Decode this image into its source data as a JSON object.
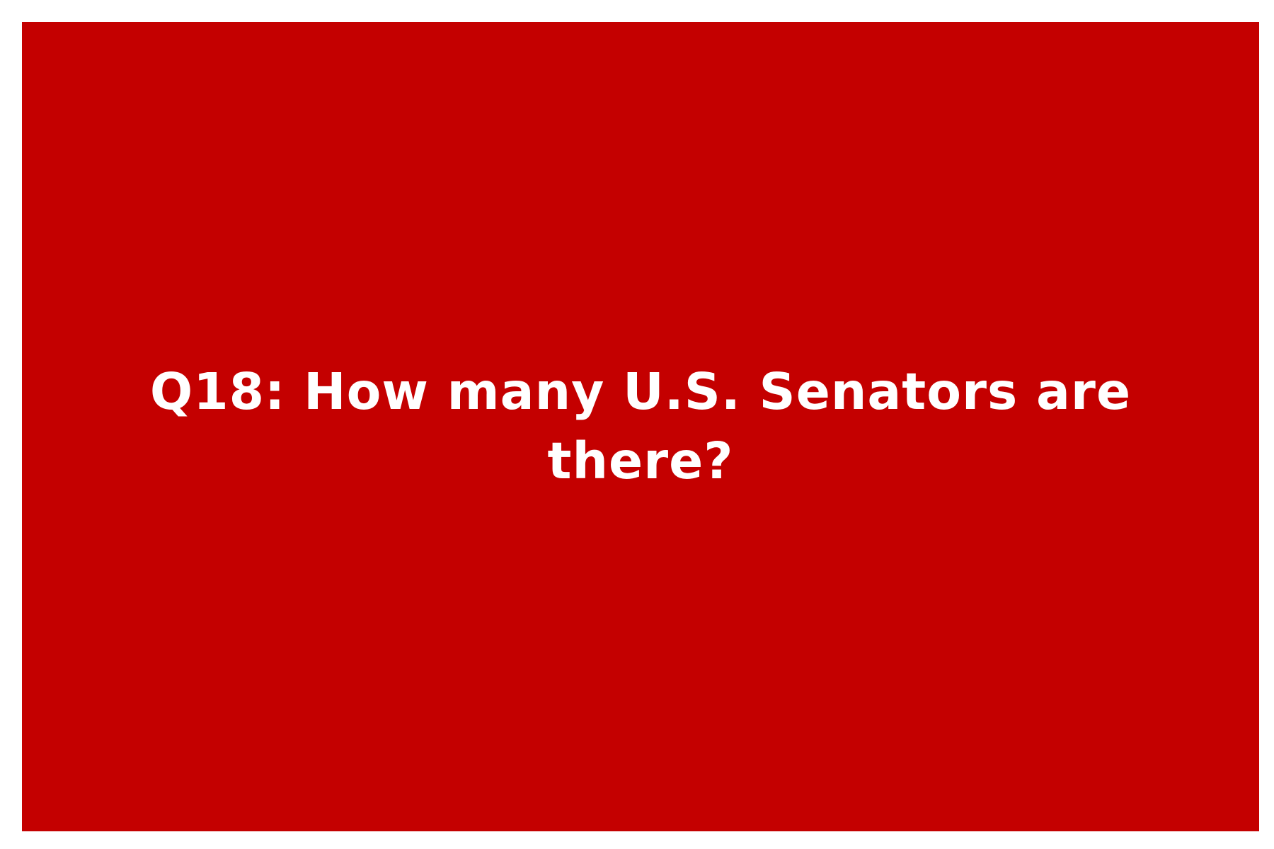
{
  "card": {
    "background_color": "#c40000",
    "text_color": "#ffffff",
    "question_text": "Q18: How many U.S. Senators are there?"
  },
  "page": {
    "background_color": "#ffffff"
  }
}
